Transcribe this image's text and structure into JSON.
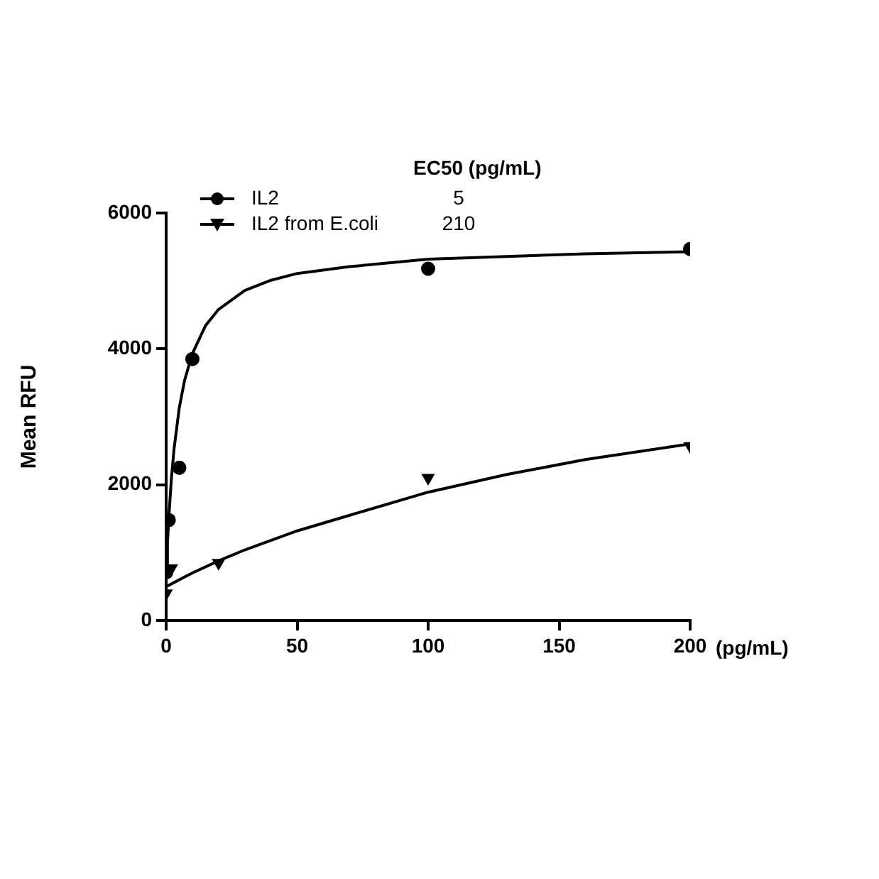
{
  "chart_data": {
    "type": "scatter",
    "xlabel": "(pg/mL)",
    "ylabel": "Mean RFU",
    "legend_title": "EC50 (pg/mL)",
    "annotations": [
      "5",
      "210"
    ],
    "xlim": [
      0,
      200
    ],
    "xticks": [
      0,
      50,
      100,
      150,
      200
    ],
    "ylim": [
      0,
      6000
    ],
    "yticks": [
      0,
      2000,
      4000,
      6000
    ],
    "grid": false,
    "legend": "top left",
    "series": [
      {
        "name": "IL2",
        "color": "#000000",
        "marker": "circle",
        "x": [
          0,
          1,
          5,
          10,
          100,
          200
        ],
        "values": [
          710,
          1480,
          2250,
          3850,
          5180,
          5470
        ]
      },
      {
        "name": "IL2 from E.coli",
        "color": "#000000",
        "marker": "triangle",
        "x": [
          0,
          2,
          20,
          100,
          200
        ],
        "values": [
          400,
          770,
          850,
          2100,
          2570
        ]
      },
      {
        "type": "line",
        "color": "#000000",
        "marker": "none",
        "x": [
          0,
          0.5,
          1,
          2,
          3,
          5,
          7,
          10,
          15,
          20,
          30,
          40,
          50,
          70,
          100,
          130,
          160,
          200
        ],
        "values": [
          700,
          1140,
          1510,
          2090,
          2520,
          3130,
          3530,
          3930,
          4340,
          4580,
          4860,
          5010,
          5110,
          5210,
          5320,
          5360,
          5400,
          5430
        ]
      },
      {
        "type": "line",
        "color": "#000000",
        "marker": "none",
        "x": [
          0,
          5,
          10,
          20,
          30,
          40,
          50,
          70,
          100,
          130,
          160,
          200
        ],
        "values": [
          500,
          600,
          700,
          880,
          1040,
          1180,
          1320,
          1550,
          1890,
          2150,
          2370,
          2600
        ]
      }
    ]
  }
}
